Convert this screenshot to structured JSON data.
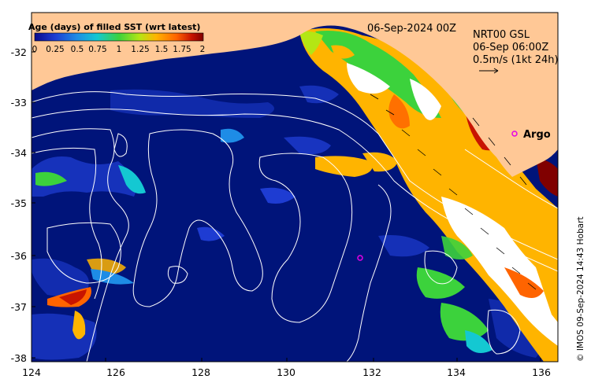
{
  "map": {
    "date_label": "06-Sep-2024 00Z",
    "current_info": [
      "NRT00 GSL",
      "06-Sep 06:00Z",
      "0.5m/s (1kt 24h)"
    ],
    "float_label": "Argo",
    "credit": "© IMOS 09-Sep-2024 14:43 Hobart",
    "x_ticks": [
      "124",
      "126",
      "128",
      "130",
      "132",
      "134",
      "136"
    ],
    "y_ticks": [
      "-32",
      "-33",
      "-34",
      "-35",
      "-36",
      "-37",
      "-38"
    ],
    "colorbar": {
      "title": "Age (days) of filled SST (wrt latest)",
      "ticks": [
        "0",
        "0.25",
        "0.5",
        "0.75",
        "1",
        "1.25",
        "1.5",
        "1.75",
        "2"
      ],
      "colors": [
        "#0a0a8c",
        "#1e3cd2",
        "#1e8ce6",
        "#14c8d2",
        "#3cd23c",
        "#b4e614",
        "#ffb400",
        "#ff6400",
        "#c81400",
        "#800000"
      ]
    },
    "colors": {
      "land": "#ffc896",
      "ocean_base": "#00147a",
      "contour": "#ffffff",
      "argo_marker": "#e600e6"
    }
  }
}
